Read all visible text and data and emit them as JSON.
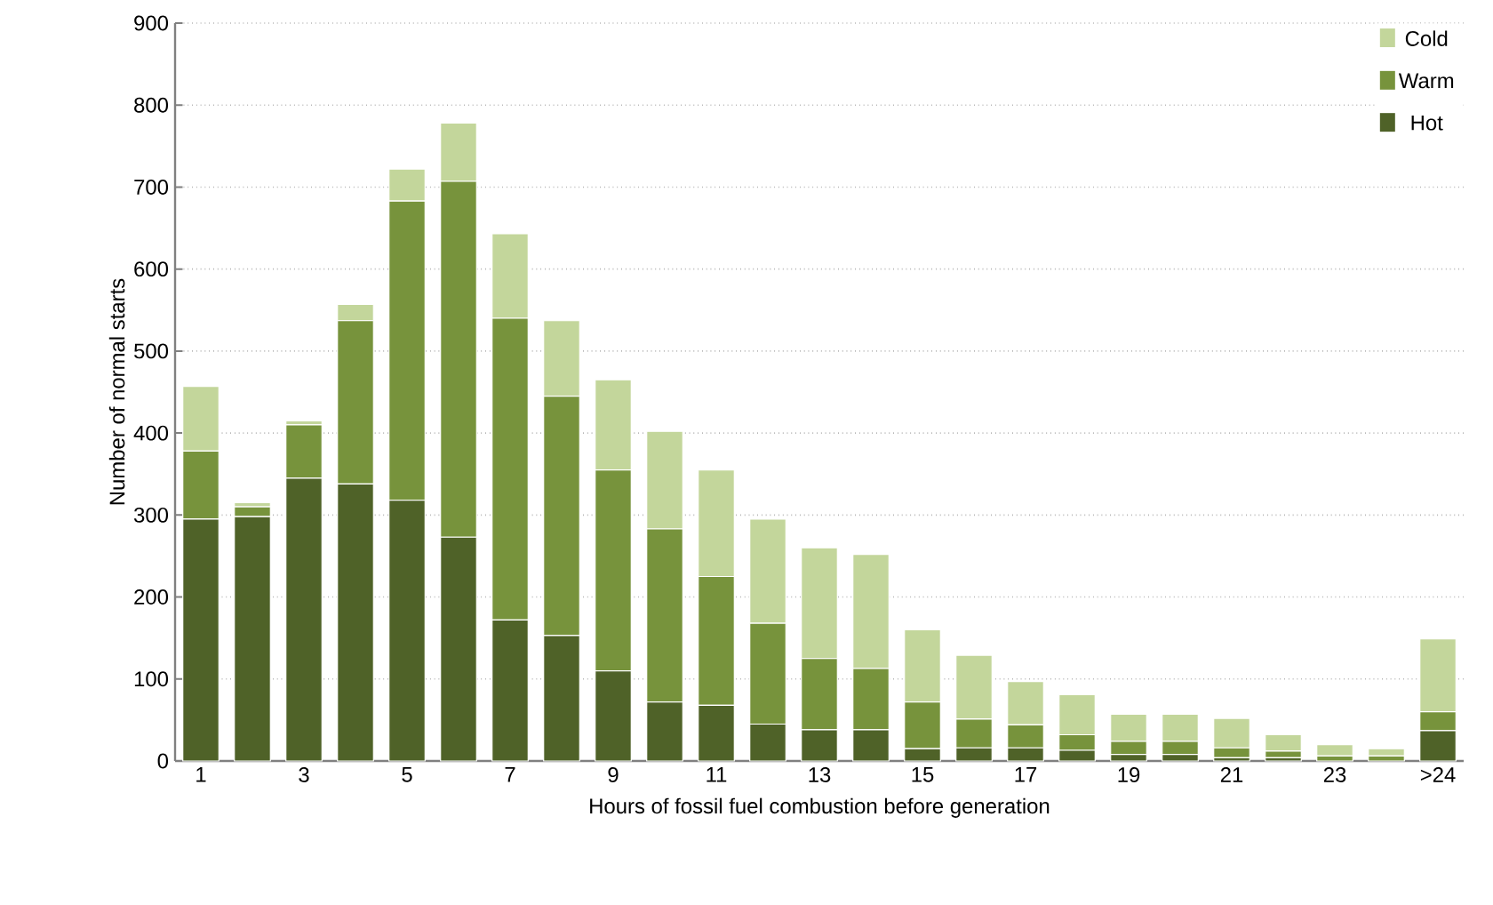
{
  "chart_data": {
    "type": "bar",
    "stacked": true,
    "xlabel": "Hours of fossil fuel combustion before generation",
    "ylabel": "Number of normal starts",
    "categories": [
      "1",
      null,
      "3",
      null,
      "5",
      null,
      "7",
      null,
      "9",
      null,
      "11",
      null,
      "13",
      null,
      "15",
      null,
      "17",
      null,
      "19",
      null,
      "21",
      null,
      "23",
      null,
      ">24"
    ],
    "series": [
      {
        "name": "Hot",
        "color": "#4f6228",
        "values": [
          295,
          298,
          345,
          338,
          318,
          273,
          172,
          153,
          110,
          72,
          68,
          45,
          38,
          38,
          15,
          16,
          16,
          13,
          8,
          8,
          4,
          4,
          null,
          null,
          37
        ]
      },
      {
        "name": "Warm",
        "color": "#77933c",
        "values": [
          83,
          12,
          65,
          199,
          365,
          434,
          368,
          292,
          245,
          211,
          157,
          123,
          87,
          75,
          57,
          35,
          28,
          19,
          16,
          16,
          12,
          8,
          6,
          6,
          23
        ]
      },
      {
        "name": "Cold",
        "color": "#c3d69b",
        "values": [
          79,
          5,
          5,
          20,
          39,
          71,
          103,
          92,
          110,
          119,
          130,
          127,
          135,
          139,
          88,
          78,
          53,
          49,
          33,
          33,
          36,
          20,
          14,
          9,
          89
        ]
      }
    ],
    "ylim": [
      0,
      900
    ],
    "yticks": [
      0,
      100,
      200,
      300,
      400,
      500,
      600,
      700,
      800,
      900
    ],
    "grid": "y",
    "legend": "top right"
  }
}
